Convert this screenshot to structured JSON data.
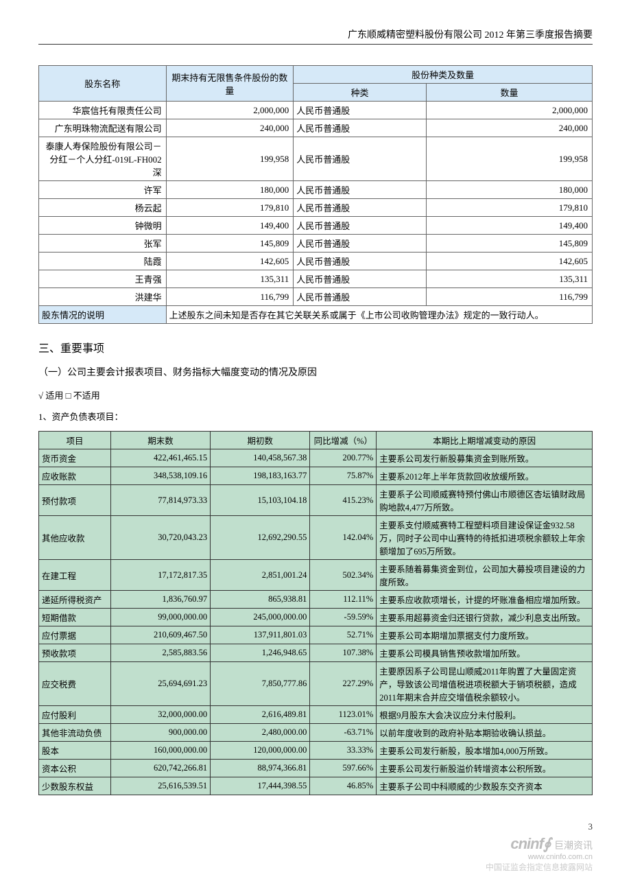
{
  "header": "广东顺威精密塑料股份有限公司 2012 年第三季度报告摘要",
  "share_table": {
    "cols": {
      "name": "股东名称",
      "unrestricted": "期末持有无限售条件股份的数量",
      "group": "股份种类及数量",
      "type": "种类",
      "qty": "数量"
    },
    "col_widths": [
      "23%",
      "23%",
      "24%",
      "30%"
    ],
    "header_bg": "#d6e9f8",
    "border_color": "#666666",
    "rows": [
      {
        "name": "华宸信托有限责任公司",
        "unrestricted": "2,000,000",
        "type": "人民币普通股",
        "qty": "2,000,000"
      },
      {
        "name": "广东明珠物流配送有限公司",
        "unrestricted": "240,000",
        "type": "人民币普通股",
        "qty": "240,000"
      },
      {
        "name": "泰康人寿保险股份有限公司－分红－个人分红-019L-FH002 深",
        "unrestricted": "199,958",
        "type": "人民币普通股",
        "qty": "199,958"
      },
      {
        "name": "许军",
        "unrestricted": "180,000",
        "type": "人民币普通股",
        "qty": "180,000"
      },
      {
        "name": "杨云起",
        "unrestricted": "179,810",
        "type": "人民币普通股",
        "qty": "179,810"
      },
      {
        "name": "钟微明",
        "unrestricted": "149,400",
        "type": "人民币普通股",
        "qty": "149,400"
      },
      {
        "name": "张军",
        "unrestricted": "145,809",
        "type": "人民币普通股",
        "qty": "145,809"
      },
      {
        "name": "陆霞",
        "unrestricted": "142,605",
        "type": "人民币普通股",
        "qty": "142,605"
      },
      {
        "name": "王青强",
        "unrestricted": "135,311",
        "type": "人民币普通股",
        "qty": "135,311"
      },
      {
        "name": "洪建华",
        "unrestricted": "116,799",
        "type": "人民币普通股",
        "qty": "116,799"
      }
    ],
    "note_label": "股东情况的说明",
    "note_text": "上述股东之间未知是否存在其它关联关系或属于《上市公司收购管理办法》规定的一致行动人。"
  },
  "section3": {
    "title": "三、重要事项",
    "sub1": "（一）公司主要会计报表项目、财务指标大幅度变动的情况及原因",
    "apply": "√ 适用 □ 不适用",
    "bs_label": "1、资产负债表项目："
  },
  "fin_table": {
    "headers": {
      "item": "项目",
      "end": "期末数",
      "begin": "期初数",
      "pct": "同比增减（%）",
      "reason": "本期比上期增减变动的原因"
    },
    "col_widths": [
      "13%",
      "18%",
      "18%",
      "12%",
      "39%"
    ],
    "bg": "#c0dfcd",
    "border_color": "#333333",
    "rows": [
      {
        "item": "货币资金",
        "end": "422,461,465.15",
        "begin": "140,458,567.38",
        "pct": "200.77%",
        "reason": "主要系公司发行新股募集资金到账所致。"
      },
      {
        "item": "应收账款",
        "end": "348,538,109.16",
        "begin": "198,183,163.77",
        "pct": "75.87%",
        "reason": "主要系2012年上半年货款回收放缓所致。"
      },
      {
        "item": "预付款项",
        "end": "77,814,973.33",
        "begin": "15,103,104.18",
        "pct": "415.23%",
        "reason": "主要系子公司顺威赛特预付佛山市顺德区杏坛镇财政局购地款4,477万所致。"
      },
      {
        "item": "其他应收款",
        "end": "30,720,043.23",
        "begin": "12,692,290.55",
        "pct": "142.04%",
        "reason": "主要系支付顺威赛特工程塑料项目建设保证金932.58万，同时子公司中山赛特的待抵扣进项税余额较上年余额增加了695万所致。"
      },
      {
        "item": "在建工程",
        "end": "17,172,817.35",
        "begin": "2,851,001.24",
        "pct": "502.34%",
        "reason": "主要系随着募集资金到位，公司加大募投项目建设的力度所致。"
      },
      {
        "item": "递延所得税资产",
        "end": "1,836,760.97",
        "begin": "865,938.81",
        "pct": "112.11%",
        "reason": "主要系应收款项增长，计提的坏账准备相应增加所致。"
      },
      {
        "item": "短期借款",
        "end": "99,000,000.00",
        "begin": "245,000,000.00",
        "pct": "-59.59%",
        "reason": "主要系用超募资金归还银行贷款，减少利息支出所致。"
      },
      {
        "item": "应付票据",
        "end": "210,609,467.50",
        "begin": "137,911,801.03",
        "pct": "52.71%",
        "reason": "主要系公司本期增加票据支付力度所致。"
      },
      {
        "item": "预收款项",
        "end": "2,585,883.56",
        "begin": "1,246,948.65",
        "pct": "107.38%",
        "reason": "主要系公司模具销售预收款增加所致。"
      },
      {
        "item": "应交税费",
        "end": "25,694,691.23",
        "begin": "7,850,777.86",
        "pct": "227.29%",
        "reason": "主要原因系子公司昆山顺威2011年购置了大量固定资产，导致该公司增值税进项税额大于销项税额，造成2011年期末合并应交增值税余额较小。"
      },
      {
        "item": "应付股利",
        "end": "32,000,000.00",
        "begin": "2,616,489.81",
        "pct": "1123.01%",
        "reason": "根据9月股东大会决议应分未付股利。"
      },
      {
        "item": "其他非流动负债",
        "end": "900,000.00",
        "begin": "2,480,000.00",
        "pct": "-63.71%",
        "reason": "以前年度收到的政府补贴本期验收确认损益。"
      },
      {
        "item": "股本",
        "end": "160,000,000.00",
        "begin": "120,000,000.00",
        "pct": "33.33%",
        "reason": "主要系公司发行新股，股本增加4,000万所致。"
      },
      {
        "item": "资本公积",
        "end": "620,742,266.81",
        "begin": "88,974,366.81",
        "pct": "597.66%",
        "reason": "主要系公司发行新股溢价转增资本公积所致。"
      },
      {
        "item": "少数股东权益",
        "end": "25,616,539.51",
        "begin": "17,444,398.55",
        "pct": "46.85%",
        "reason": "主要系子公司中科顺威的少数股东交齐资本"
      }
    ]
  },
  "footer": {
    "page": "3",
    "logo_en": "cninf",
    "logo_cn": "巨潮资讯",
    "url": "www.cninfo.com.cn",
    "desc": "中国证监会指定信息披露网站"
  }
}
